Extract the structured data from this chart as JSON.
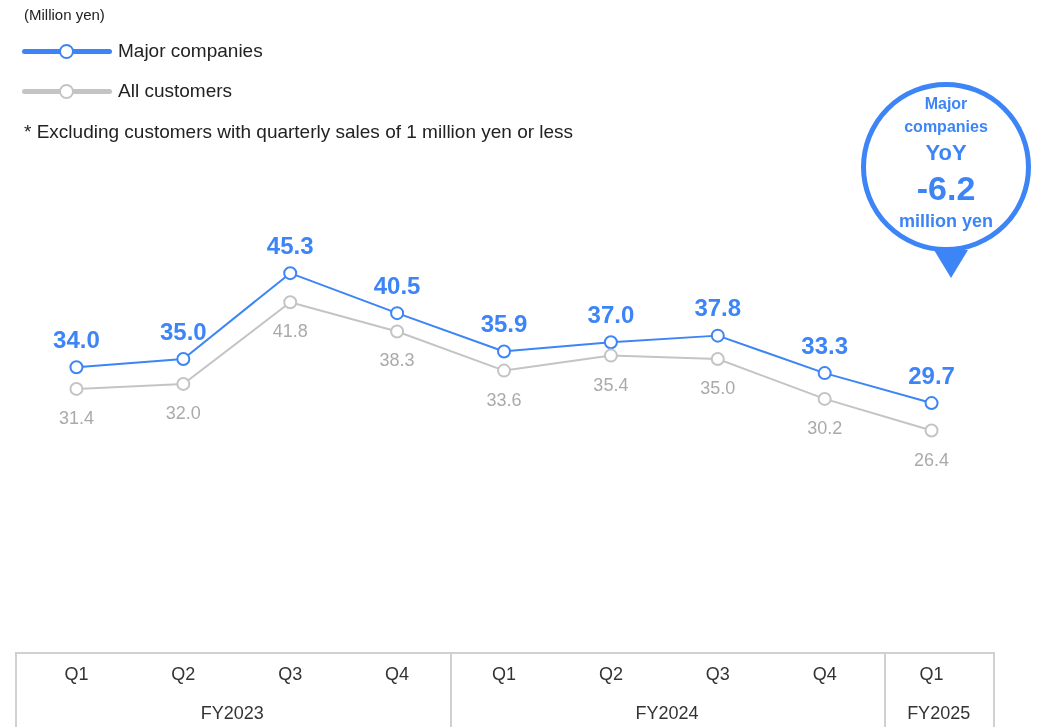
{
  "chart_data": {
    "type": "line",
    "categories": [
      "Q1",
      "Q2",
      "Q3",
      "Q4",
      "Q1",
      "Q2",
      "Q3",
      "Q4",
      "Q1"
    ],
    "series": [
      {
        "name": "Major companies",
        "color": "#3d85f6",
        "values": [
          34.0,
          35.0,
          45.3,
          40.5,
          35.9,
          37.0,
          37.8,
          33.3,
          29.7
        ],
        "value_labels": [
          "34.0",
          "35.0",
          "45.3",
          "40.5",
          "35.9",
          "37.0",
          "37.8",
          "33.3",
          "29.7"
        ]
      },
      {
        "name": "All customers",
        "color": "#c4c4c4",
        "values": [
          31.4,
          32.0,
          41.8,
          38.3,
          33.6,
          35.4,
          35.0,
          30.2,
          26.4
        ],
        "value_labels": [
          "31.4",
          "32.0",
          "41.8",
          "38.3",
          "33.6",
          "35.4",
          "35.0",
          "30.2",
          "26.4"
        ]
      }
    ],
    "marker": "circle",
    "line_style": "solid",
    "legend": "top left",
    "grid": false,
    "annotations": [
      "* Excluding customers with quarterly sales of 1 million yen or less",
      "Major companies",
      "YoY",
      "-6.2",
      "million yen",
      "FY2023",
      "FY2024",
      "FY2025",
      "(Million yen)"
    ]
  }
}
